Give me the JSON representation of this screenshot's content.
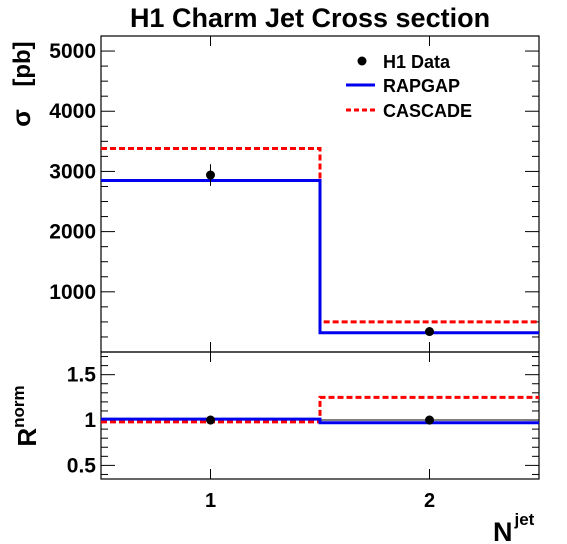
{
  "chart_data": {
    "type": "line",
    "title": "H1 Charm Jet Cross section",
    "legend_position": "top-right",
    "x_categories": [
      "1",
      "2"
    ],
    "xlabel": {
      "base": "N",
      "superscript": "jet"
    },
    "upper_panel": {
      "ylabel": {
        "symbol": "σ",
        "unit": "[pb]"
      },
      "ylim": [
        0,
        5250
      ],
      "yticks": [
        1000,
        2000,
        3000,
        4000,
        5000
      ],
      "ytick_labels": [
        "1000",
        "2000",
        "3000",
        "4000",
        "5000"
      ],
      "x_bin_edges": [
        0.5,
        1.5,
        2.5
      ],
      "series": [
        {
          "name": "H1 Data",
          "kind": "points",
          "color": "#000000",
          "x": [
            1,
            2
          ],
          "y": [
            2940,
            340
          ],
          "y_err": [
            180,
            20
          ]
        },
        {
          "name": "RAPGAP",
          "kind": "histogram",
          "color": "#0000ee",
          "style": "solid",
          "values": [
            2850,
            320
          ]
        },
        {
          "name": "CASCADE",
          "kind": "histogram",
          "color": "#ff0000",
          "style": "dashed",
          "values": [
            3380,
            500
          ]
        }
      ]
    },
    "ratio_panel": {
      "ylabel": {
        "base": "R",
        "superscript": "norm"
      },
      "ylim": [
        0.35,
        1.75
      ],
      "yticks": [
        0.5,
        1,
        1.5
      ],
      "ytick_labels": [
        "0.5",
        "1",
        "1.5"
      ],
      "reference_line": 1,
      "series": [
        {
          "name": "H1 Data",
          "kind": "points",
          "color": "#000000",
          "x": [
            1,
            2
          ],
          "y": [
            1.0,
            1.0
          ],
          "y_err": [
            0.05,
            0.05
          ]
        },
        {
          "name": "RAPGAP",
          "kind": "histogram",
          "color": "#0000ee",
          "style": "solid",
          "values": [
            1.01,
            0.97
          ]
        },
        {
          "name": "CASCADE",
          "kind": "histogram",
          "color": "#ff0000",
          "style": "dashed",
          "values": [
            0.98,
            1.25
          ]
        }
      ]
    }
  }
}
